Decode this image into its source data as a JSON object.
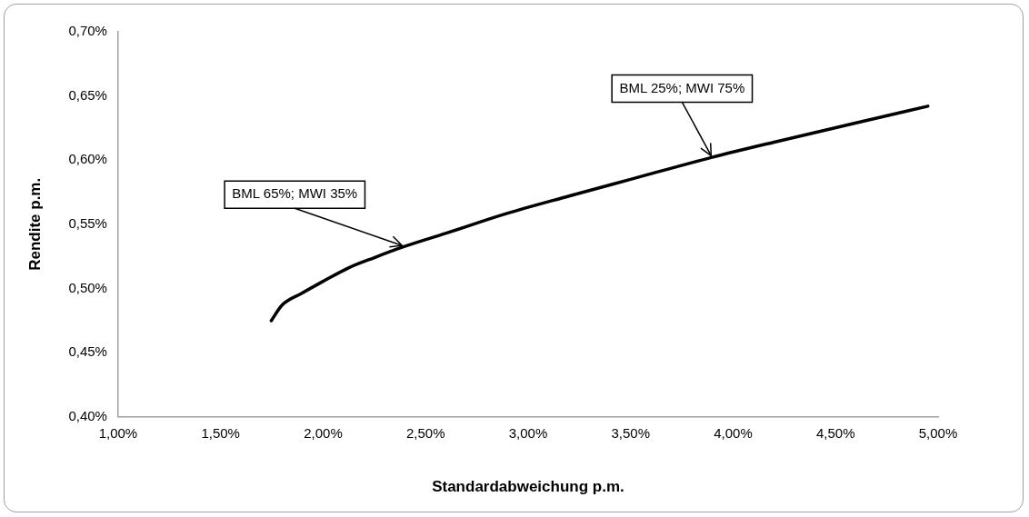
{
  "chart_data": {
    "type": "line",
    "xlabel": "Standardabweichung p.m.",
    "ylabel": "Rendite p.m.",
    "x": [
      1.747,
      1.8,
      1.894,
      2.0,
      2.124,
      2.25,
      2.385,
      2.6,
      2.879,
      3.2,
      3.5,
      3.893,
      4.2,
      4.6,
      4.95
    ],
    "series": [
      {
        "color": "#000000",
        "values": [
          0.4748,
          0.487,
          0.496,
          0.5055,
          0.516,
          0.524,
          0.532,
          0.543,
          0.5576,
          0.572,
          0.585,
          0.602,
          0.614,
          0.629,
          0.642
        ]
      }
    ],
    "xlim": [
      1,
      5
    ],
    "ylim": [
      0.4,
      0.7
    ],
    "xticks": [
      {
        "value": 1,
        "label": "1,00%"
      },
      {
        "value": 1.5,
        "label": "1,50%"
      },
      {
        "value": 2,
        "label": "2,00%"
      },
      {
        "value": 2.5,
        "label": "2,50%"
      },
      {
        "value": 3,
        "label": "3,00%"
      },
      {
        "value": 3.5,
        "label": "3,50%"
      },
      {
        "value": 4,
        "label": "4,00%"
      },
      {
        "value": 4.5,
        "label": "4,50%"
      },
      {
        "value": 5,
        "label": "5,00%"
      }
    ],
    "yticks": [
      {
        "value": 0.4,
        "label": "0,40%"
      },
      {
        "value": 0.45,
        "label": "0,45%"
      },
      {
        "value": 0.5,
        "label": "0,50%"
      },
      {
        "value": 0.55,
        "label": "0,55%"
      },
      {
        "value": 0.6,
        "label": "0,60%"
      },
      {
        "value": 0.65,
        "label": "0,65%"
      },
      {
        "value": 0.7,
        "label": "0,70%"
      }
    ],
    "annotations": [
      {
        "text": "BML 65%; MWI 35%",
        "x": 2.385,
        "y": 0.532
      },
      {
        "text": "BML 25%; MWI 75%",
        "x": 3.893,
        "y": 0.602
      }
    ],
    "grid": false,
    "legend": false,
    "marker": "none",
    "line_style": "solid"
  }
}
